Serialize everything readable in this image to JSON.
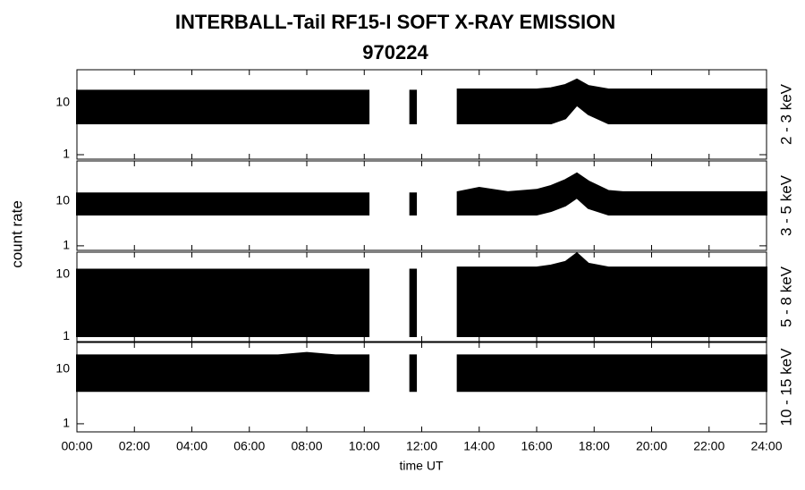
{
  "chart_data": {
    "type": "area",
    "title": "INTERBALL-Tail RF15-I SOFT X-RAY EMISSION",
    "subtitle": "970224",
    "y_label": "count rate",
    "x_label": "time UT",
    "log_y": true,
    "color": "#000000",
    "xlim": [
      0,
      24
    ],
    "xticks": [
      {
        "value": 0,
        "label": "00:00"
      },
      {
        "value": 2,
        "label": "02:00"
      },
      {
        "value": 4,
        "label": "04:00"
      },
      {
        "value": 6,
        "label": "06:00"
      },
      {
        "value": 8,
        "label": "08:00"
      },
      {
        "value": 10,
        "label": "10:00"
      },
      {
        "value": 12,
        "label": "12:00"
      },
      {
        "value": 14,
        "label": "14:00"
      },
      {
        "value": 16,
        "label": "16:00"
      },
      {
        "value": 18,
        "label": "18:00"
      },
      {
        "value": 20,
        "label": "20:00"
      },
      {
        "value": 22,
        "label": "22:00"
      },
      {
        "value": 24,
        "label": "24:00"
      }
    ],
    "x": [
      0,
      1,
      2,
      3,
      4,
      5,
      6,
      7,
      8,
      9,
      10,
      10.15,
      11,
      11.6,
      11.8,
      12.5,
      13.25,
      14,
      15,
      16,
      16.5,
      17,
      17.4,
      17.8,
      18.5,
      19,
      20,
      21,
      22,
      23,
      24
    ],
    "panels": [
      {
        "name": "2 - 3 keV",
        "ylim": [
          0.82,
          43
        ],
        "yticks": [
          1,
          10
        ],
        "high": [
          17,
          17,
          17,
          17,
          17,
          17,
          17,
          17,
          17,
          17,
          17,
          17,
          null,
          17,
          17,
          null,
          18,
          18,
          18,
          18,
          19,
          22,
          28,
          21,
          18,
          18,
          18,
          18,
          18,
          18,
          18
        ],
        "low": [
          4,
          4,
          4,
          4,
          4,
          4,
          4,
          4,
          4,
          4,
          4,
          4,
          null,
          4,
          4,
          null,
          4,
          4,
          4,
          4,
          4,
          5,
          9,
          6,
          4,
          4,
          4,
          4,
          4,
          4,
          4
        ]
      },
      {
        "name": "3 - 5 keV",
        "ylim": [
          0.79,
          80
        ],
        "yticks": [
          1,
          10
        ],
        "high": [
          15,
          15,
          15,
          15,
          15,
          15,
          15,
          15,
          15,
          15,
          15,
          15,
          null,
          15,
          15,
          null,
          16,
          20,
          16,
          18,
          22,
          30,
          42,
          28,
          17,
          16,
          16,
          16,
          16,
          16,
          16
        ],
        "low": [
          5,
          5,
          5,
          5,
          5,
          5,
          5,
          5,
          5,
          5,
          5,
          5,
          null,
          5,
          5,
          null,
          5,
          5,
          5,
          5,
          6,
          8,
          12,
          7,
          5,
          5,
          5,
          5,
          5,
          5,
          5
        ]
      },
      {
        "name": "5 - 8 keV",
        "ylim": [
          0.82,
          23
        ],
        "yticks": [
          1,
          10
        ],
        "high": [
          12,
          12,
          12,
          12,
          12,
          12,
          12,
          12,
          12,
          12,
          12,
          12,
          null,
          12,
          12,
          null,
          13,
          13,
          13,
          13,
          14,
          16,
          22,
          15,
          13,
          13,
          13,
          13,
          13,
          13,
          13
        ],
        "low": [
          1,
          1,
          1,
          1,
          1,
          1,
          1,
          1,
          1,
          1,
          1,
          1,
          null,
          1,
          1,
          null,
          1,
          1,
          1,
          1,
          1,
          1,
          1,
          1,
          1,
          1,
          1,
          1,
          1,
          1,
          1
        ]
      },
      {
        "name": "10 - 15 keV",
        "ylim": [
          0.71,
          31
        ],
        "yticks": [
          1,
          10
        ],
        "high": [
          18,
          18,
          18,
          18,
          18,
          18,
          18,
          18,
          20,
          18,
          18,
          18,
          null,
          18,
          18,
          null,
          18,
          18,
          18,
          18,
          18,
          18,
          18,
          18,
          18,
          18,
          18,
          18,
          18,
          18,
          18
        ],
        "low": [
          4,
          4,
          4,
          4,
          4,
          4,
          4,
          4,
          4,
          4,
          4,
          4,
          null,
          4,
          4,
          null,
          4,
          4,
          4,
          4,
          4,
          4,
          4,
          4,
          4,
          4,
          4,
          4,
          4,
          4,
          4
        ]
      }
    ]
  }
}
